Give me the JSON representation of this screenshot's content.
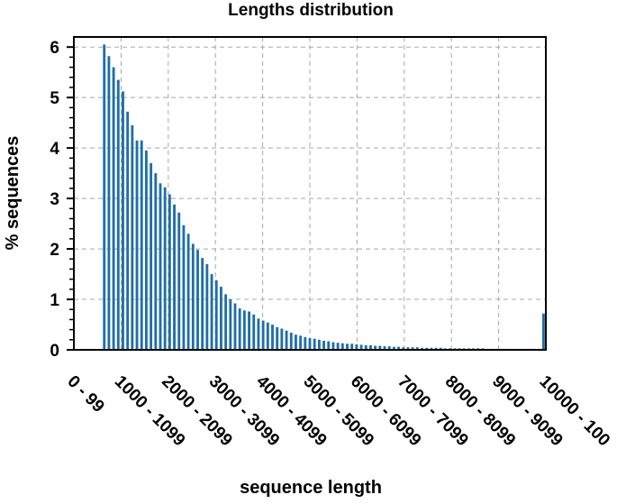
{
  "chart_data": {
    "type": "bar",
    "title": "Lengths distribution",
    "xlabel": "sequence length",
    "ylabel": "% sequences",
    "ylim": [
      0,
      6.2
    ],
    "yticks": [
      "0",
      "1",
      "2",
      "3",
      "4",
      "5",
      "6"
    ],
    "xticks": [
      "0 - 99",
      "1000 - 1099",
      "2000 - 2099",
      "3000 - 3099",
      "4000 - 4099",
      "5000 - 5099",
      "6000 - 6099",
      "7000 - 7099",
      "8000 - 8099",
      "9000 - 9099",
      "10000 - 100"
    ],
    "grid": true,
    "bar_color": "#1f6ea8",
    "values": [
      0,
      0,
      0,
      0,
      0,
      0,
      6.05,
      5.82,
      5.6,
      5.35,
      5.12,
      4.72,
      4.45,
      4.15,
      4.15,
      3.95,
      3.7,
      3.5,
      3.3,
      3.22,
      3.08,
      2.88,
      2.72,
      2.47,
      2.3,
      2.1,
      1.98,
      1.82,
      1.7,
      1.5,
      1.38,
      1.25,
      1.1,
      1.0,
      0.92,
      0.82,
      0.78,
      0.76,
      0.7,
      0.62,
      0.58,
      0.54,
      0.5,
      0.45,
      0.42,
      0.38,
      0.34,
      0.3,
      0.28,
      0.25,
      0.23,
      0.22,
      0.2,
      0.18,
      0.17,
      0.15,
      0.14,
      0.13,
      0.12,
      0.12,
      0.11,
      0.1,
      0.09,
      0.09,
      0.08,
      0.08,
      0.07,
      0.07,
      0.06,
      0.06,
      0.05,
      0.05,
      0.05,
      0.05,
      0.04,
      0.04,
      0.04,
      0.04,
      0.04,
      0.03,
      0.03,
      0.03,
      0.03,
      0.03,
      0.03,
      0.03,
      0.03,
      0.03,
      0.02,
      0.02,
      0.02,
      0.02,
      0.02,
      0.02,
      0.02,
      0.02,
      0.02,
      0.02,
      0.02,
      0.02,
      0.72
    ]
  }
}
